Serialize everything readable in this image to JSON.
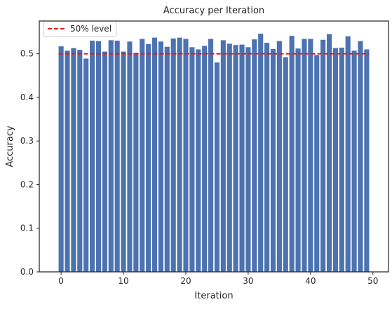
{
  "chart_data": {
    "type": "bar",
    "title": "Accuracy per Iteration",
    "xlabel": "Iteration",
    "ylabel": "Accuracy",
    "x": [
      0,
      1,
      2,
      3,
      4,
      5,
      6,
      7,
      8,
      9,
      10,
      11,
      12,
      13,
      14,
      15,
      16,
      17,
      18,
      19,
      20,
      21,
      22,
      23,
      24,
      25,
      26,
      27,
      28,
      29,
      30,
      31,
      32,
      33,
      34,
      35,
      36,
      37,
      38,
      39,
      40,
      41,
      42,
      43,
      44,
      45,
      46,
      47,
      48,
      49
    ],
    "values": [
      0.517,
      0.507,
      0.513,
      0.509,
      0.489,
      0.53,
      0.529,
      0.505,
      0.531,
      0.53,
      0.505,
      0.528,
      0.502,
      0.534,
      0.522,
      0.537,
      0.528,
      0.516,
      0.535,
      0.537,
      0.534,
      0.515,
      0.51,
      0.518,
      0.534,
      0.48,
      0.531,
      0.523,
      0.52,
      0.521,
      0.515,
      0.533,
      0.546,
      0.525,
      0.511,
      0.529,
      0.492,
      0.541,
      0.512,
      0.534,
      0.534,
      0.497,
      0.532,
      0.545,
      0.513,
      0.514,
      0.54,
      0.507,
      0.529,
      0.51
    ],
    "xlim": [
      -3.5,
      52.5
    ],
    "ylim": [
      0,
      0.575
    ],
    "xticks": [
      0,
      10,
      20,
      30,
      40,
      50
    ],
    "yticks": [
      0.0,
      0.1,
      0.2,
      0.3,
      0.4,
      0.5
    ],
    "xtick_labels": [
      "0",
      "10",
      "20",
      "30",
      "40",
      "50"
    ],
    "ytick_labels": [
      "0.0",
      "0.1",
      "0.2",
      "0.3",
      "0.4",
      "0.5"
    ],
    "bar_color": "#4c72b0",
    "reference_line": {
      "y": 0.5,
      "label": "50% level",
      "color": "#e41a1c",
      "style": "dashed"
    },
    "legend": {
      "placement": "top-left"
    },
    "grid": false
  }
}
